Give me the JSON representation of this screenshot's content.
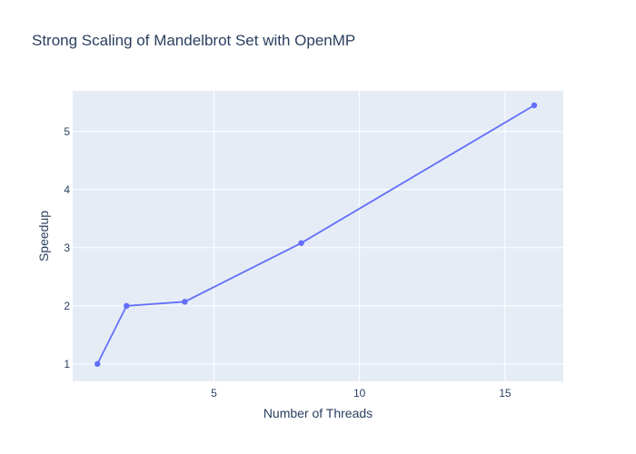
{
  "chart_data": {
    "type": "line",
    "title": "Strong Scaling of Mandelbrot Set with OpenMP",
    "xlabel": "Number of Threads",
    "ylabel": "Speedup",
    "x": [
      1,
      2,
      4,
      8,
      16
    ],
    "series": [
      {
        "values": [
          1.0,
          2.0,
          2.07,
          3.08,
          5.45
        ]
      }
    ],
    "xlim": [
      0.15,
      17
    ],
    "ylim": [
      0.7,
      5.7
    ],
    "xticks": [
      "5",
      "10",
      "15"
    ],
    "yticks": [
      "1",
      "2",
      "3",
      "4",
      "5"
    ],
    "grid": true,
    "colors": {
      "line": "#636efa",
      "plot_bg": "#e5ecf6",
      "grid": "#ffffff",
      "text": "#2a3f5f"
    }
  }
}
